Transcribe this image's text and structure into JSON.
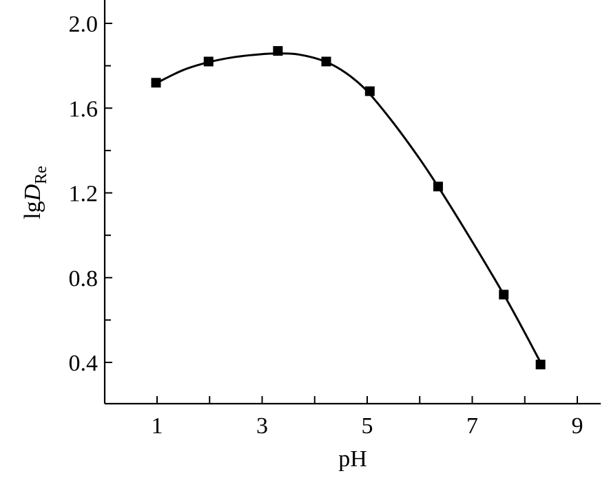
{
  "chart_data": {
    "type": "scatter",
    "xlabel": "pH",
    "ylabel": {
      "main": "lg",
      "italic": "D",
      "subscript": "Re"
    },
    "xlim": [
      0,
      9.4
    ],
    "ylim": [
      0.2,
      2.1
    ],
    "x_ticks": [
      1,
      3,
      5,
      7,
      9
    ],
    "x_tick_labels": [
      "1",
      "3",
      "5",
      "7",
      "9"
    ],
    "x_minor_ticks": [
      2,
      4,
      6,
      8
    ],
    "y_ticks": [
      0.4,
      0.8,
      1.2,
      1.6,
      2.0
    ],
    "y_tick_labels": [
      "0.4",
      "0.8",
      "1.2",
      "1.6",
      "2.0"
    ],
    "y_minor_ticks": [
      0.6,
      1.0,
      1.4,
      1.8
    ],
    "grid": false,
    "legend": "none",
    "series": [
      {
        "marker": "square",
        "points": [
          {
            "x": 0.98,
            "y": 1.72
          },
          {
            "x": 1.98,
            "y": 1.82
          },
          {
            "x": 3.3,
            "y": 1.87
          },
          {
            "x": 4.22,
            "y": 1.82
          },
          {
            "x": 5.05,
            "y": 1.68
          },
          {
            "x": 6.35,
            "y": 1.23
          },
          {
            "x": 7.6,
            "y": 0.72
          },
          {
            "x": 8.3,
            "y": 0.39
          }
        ]
      }
    ],
    "fit_curve": [
      {
        "x": 1.0,
        "y": 1.72
      },
      {
        "x": 1.5,
        "y": 1.78
      },
      {
        "x": 2.0,
        "y": 1.818
      },
      {
        "x": 2.5,
        "y": 1.842
      },
      {
        "x": 3.0,
        "y": 1.855
      },
      {
        "x": 3.3,
        "y": 1.858
      },
      {
        "x": 3.7,
        "y": 1.853
      },
      {
        "x": 4.2,
        "y": 1.82
      },
      {
        "x": 4.6,
        "y": 1.765
      },
      {
        "x": 5.0,
        "y": 1.68
      },
      {
        "x": 5.5,
        "y": 1.53
      },
      {
        "x": 6.0,
        "y": 1.36
      },
      {
        "x": 6.4,
        "y": 1.21
      },
      {
        "x": 7.0,
        "y": 0.97
      },
      {
        "x": 7.6,
        "y": 0.72
      },
      {
        "x": 8.0,
        "y": 0.54
      },
      {
        "x": 8.3,
        "y": 0.4
      }
    ],
    "colors": {
      "marker": "#000000",
      "line": "#000000",
      "axis": "#000000"
    }
  }
}
